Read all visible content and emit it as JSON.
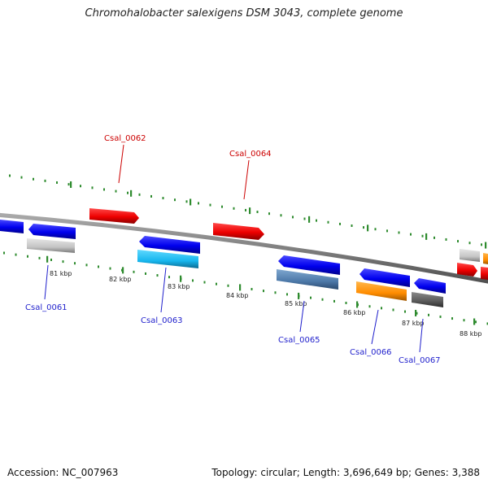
{
  "title": "Chromohalobacter salexigens DSM 3043, complete genome",
  "footer": {
    "accession": "Accession: NC_007963",
    "summary": "Topology: circular; Length: 3,696,649 bp; Genes: 3,388"
  },
  "scale_labels": [
    "81 kbp",
    "82 kbp",
    "83 kbp",
    "84 kbp",
    "85 kbp",
    "86 kbp",
    "87 kbp",
    "88 kbp"
  ],
  "colors": {
    "backbone": "#808080",
    "tick": "#2e8b2e",
    "forward_label": "#cc0000",
    "reverse_label": "#1f1fcc"
  },
  "genes": [
    {
      "name": "Csal_0061",
      "strand": "reverse",
      "labeled": true
    },
    {
      "name": "Csal_0062",
      "strand": "forward",
      "labeled": true
    },
    {
      "name": "Csal_0063",
      "strand": "reverse",
      "labeled": true
    },
    {
      "name": "Csal_0064",
      "strand": "forward",
      "labeled": true
    },
    {
      "name": "Csal_0065",
      "strand": "reverse",
      "labeled": true
    },
    {
      "name": "Csal_0066",
      "strand": "reverse",
      "labeled": true
    },
    {
      "name": "Csal_0067",
      "strand": "reverse",
      "labeled": true
    }
  ]
}
